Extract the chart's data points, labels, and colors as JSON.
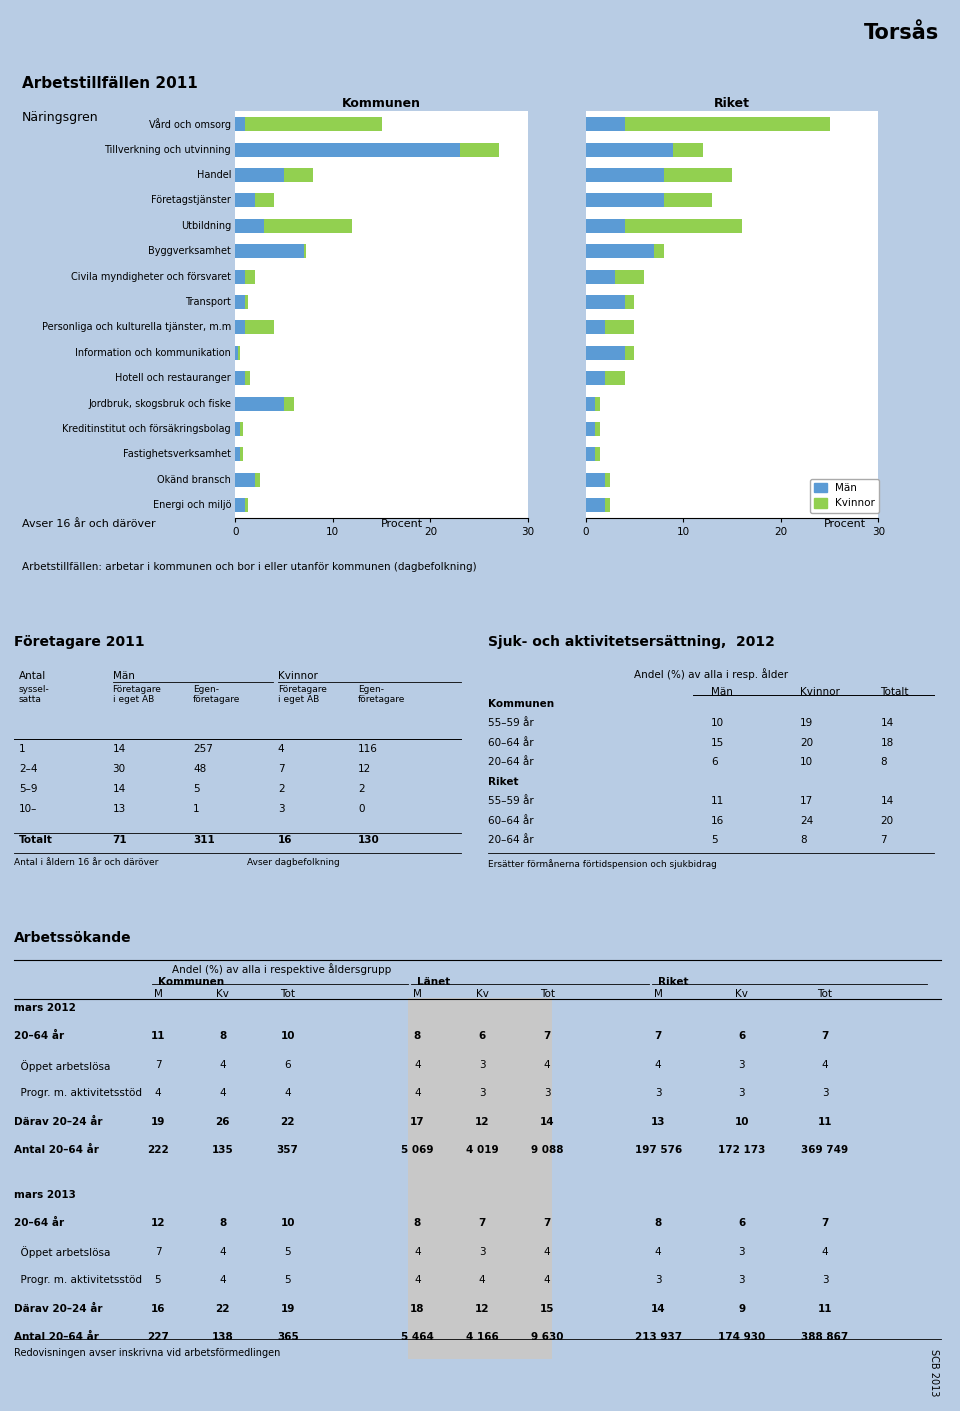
{
  "title": "Torsås",
  "section1_title": "Arbetstillfällen 2011",
  "naringsgren_label": "Näringsgren",
  "kommunen_label": "Kommunen",
  "riket_label": "Riket",
  "categories": [
    "Vård och omsorg",
    "Tillverkning och utvinning",
    "Handel",
    "Företagstjänster",
    "Utbildning",
    "Byggverksamhet",
    "Civila myndigheter och försvaret",
    "Transport",
    "Personliga och kulturella tjänster, m.m",
    "Information och kommunikation",
    "Hotell och restauranger",
    "Jordbruk, skogsbruk och fiske",
    "Kreditinstitut och försäkringsbolag",
    "Fastighetsverksamhet",
    "Okänd bransch",
    "Energi och miljö"
  ],
  "kommun_man": [
    1,
    23,
    5,
    2,
    3,
    7,
    1,
    1,
    1,
    0.3,
    1,
    5,
    0.5,
    0.5,
    2,
    1
  ],
  "kommun_kvinna": [
    14,
    4,
    3,
    2,
    9,
    0.3,
    1,
    0.3,
    3,
    0.2,
    0.5,
    1,
    0.3,
    0.3,
    0.5,
    0.3
  ],
  "riket_man": [
    4,
    9,
    8,
    8,
    4,
    7,
    3,
    4,
    2,
    4,
    2,
    1,
    1,
    1,
    2,
    2
  ],
  "riket_kvinna": [
    21,
    3,
    7,
    5,
    12,
    1,
    3,
    1,
    3,
    1,
    2,
    0.5,
    0.5,
    0.5,
    0.5,
    0.5
  ],
  "man_color": "#5b9bd5",
  "kvinna_color": "#92d050",
  "xmax": 30,
  "xlabel": "Procent",
  "avser_text": "Avser 16 år och däröver",
  "arbetstillfallen_note": "Arbetstillfällen: arbetar i kommunen och bor i eller utanför kommunen (dagbefolkning)",
  "section2_title": "Företagare 2011",
  "section2_rows": [
    [
      "1",
      "14",
      "257",
      "4",
      "116"
    ],
    [
      "2–4",
      "30",
      "48",
      "7",
      "12"
    ],
    [
      "5–9",
      "14",
      "5",
      "2",
      "2"
    ],
    [
      "10–",
      "13",
      "1",
      "3",
      "0"
    ],
    [
      "",
      "",
      "",
      "",
      ""
    ],
    [
      "Totalt",
      "71",
      "311",
      "16",
      "130"
    ]
  ],
  "section2_note1": "Antal i åldern 16 år och däröver",
  "section2_note2": "Avser dagbefolkning",
  "section3_title": "Sjuk- och aktivitetsersättning,  2012",
  "section3_subheader": "Andel (%) av alla i resp. ålder",
  "section3_rows": [
    [
      "Kommunen",
      "",
      "",
      ""
    ],
    [
      "55–59 år",
      "10",
      "19",
      "14"
    ],
    [
      "60–64 år",
      "15",
      "20",
      "18"
    ],
    [
      "20–64 år",
      "6",
      "10",
      "8"
    ],
    [
      "Riket",
      "",
      "",
      ""
    ],
    [
      "55–59 år",
      "11",
      "17",
      "14"
    ],
    [
      "60–64 år",
      "16",
      "24",
      "20"
    ],
    [
      "20–64 år",
      "5",
      "8",
      "7"
    ]
  ],
  "section3_note": "Ersätter förmånerna förtidspension och sjukbidrag",
  "section4_title": "Arbetssökande",
  "section4_subheader": "Andel (%) av alla i respektive åldersgrupp",
  "section4_groups": [
    "Kommunen",
    "Länet",
    "Riket"
  ],
  "section4_rows_2012": [
    [
      "mars 2012",
      "",
      "",
      "",
      "",
      "",
      "",
      "",
      ""
    ],
    [
      "20–64 år",
      "11",
      "8",
      "10",
      "8",
      "6",
      "7",
      "7",
      "6",
      "7"
    ],
    [
      "  Öppet arbetslösa",
      "7",
      "4",
      "6",
      "4",
      "3",
      "4",
      "4",
      "3",
      "4"
    ],
    [
      "  Progr. m. aktivitetsstöd",
      "4",
      "4",
      "4",
      "4",
      "3",
      "3",
      "3",
      "3",
      "3"
    ],
    [
      "Därav 20–24 år",
      "19",
      "26",
      "22",
      "17",
      "12",
      "14",
      "13",
      "10",
      "11"
    ],
    [
      "Antal 20–64 år",
      "222",
      "135",
      "357",
      "5 069",
      "4 019",
      "9 088",
      "197 576",
      "172 173",
      "369 749"
    ]
  ],
  "section4_rows_2013": [
    [
      "mars 2013",
      "",
      "",
      "",
      "",
      "",
      "",
      "",
      ""
    ],
    [
      "20–64 år",
      "12",
      "8",
      "10",
      "8",
      "7",
      "7",
      "8",
      "6",
      "7"
    ],
    [
      "  Öppet arbetslösa",
      "7",
      "4",
      "5",
      "4",
      "3",
      "4",
      "4",
      "3",
      "4"
    ],
    [
      "  Progr. m. aktivitetsstöd",
      "5",
      "4",
      "5",
      "4",
      "4",
      "4",
      "3",
      "3",
      "3"
    ],
    [
      "Därav 20–24 år",
      "16",
      "22",
      "19",
      "18",
      "12",
      "15",
      "14",
      "9",
      "11"
    ],
    [
      "Antal 20–64 år",
      "227",
      "138",
      "365",
      "5 464",
      "4 166",
      "9 630",
      "213 937",
      "174 930",
      "388 867"
    ]
  ],
  "section4_note": "Redovisningen avser inskrivna vid arbetsförmedlingen",
  "scb_text": "SCB 2013",
  "bg_outer": "#b8cce4",
  "bg_section": "#dce6f1",
  "bg_white": "#ffffff",
  "bg_lanet": "#c8c8c8"
}
